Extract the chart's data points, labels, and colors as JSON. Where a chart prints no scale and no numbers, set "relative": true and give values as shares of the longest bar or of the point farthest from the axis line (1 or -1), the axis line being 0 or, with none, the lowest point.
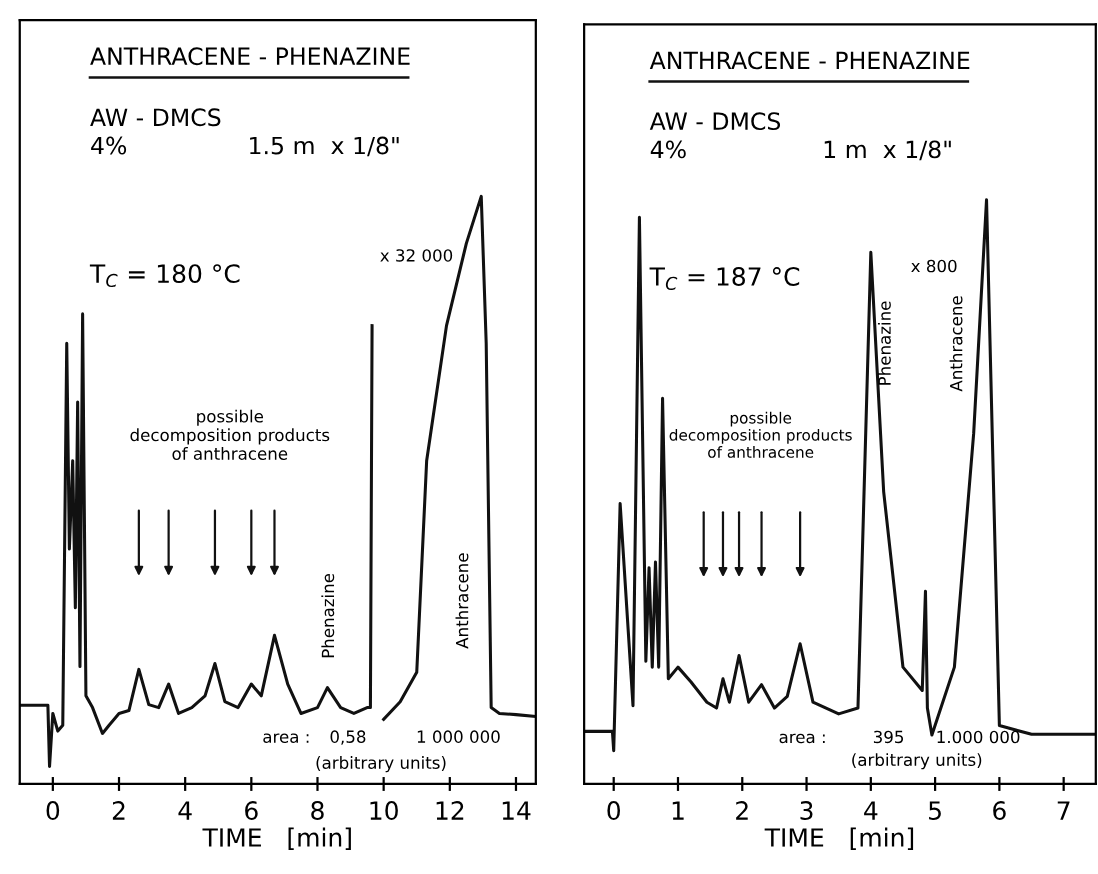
{
  "chart_data": [
    {
      "type": "line",
      "relative": true,
      "title": "ANTHRACENE - PHENAZINE",
      "subtitle": "AW - DMCS\n4%                1.5 m  x 1/8\"",
      "xlabel": "TIME   [min]",
      "x": [
        -1.0,
        -0.15,
        -0.1,
        0.0,
        0.15,
        0.3,
        0.42,
        0.5,
        0.6,
        0.68,
        0.75,
        0.82,
        0.9,
        1.0,
        1.2,
        1.5,
        1.7,
        2.0,
        2.3,
        2.6,
        2.9,
        3.2,
        3.5,
        3.8,
        4.2,
        4.6,
        4.9,
        5.2,
        5.6,
        6.0,
        6.3,
        6.7,
        7.1,
        7.5,
        8.0,
        8.3,
        8.7,
        9.1,
        9.5,
        9.6,
        9.65,
        9.8,
        10.0,
        10.5,
        11.0,
        11.3,
        11.9,
        12.5,
        12.95,
        13.1,
        13.25,
        13.5,
        14.0,
        14.6
      ],
      "series": [
        {
          "color": "#111111",
          "values": [
            0.134,
            0.134,
            0.03,
            0.12,
            0.09,
            0.1,
            0.75,
            0.4,
            0.55,
            0.3,
            0.65,
            0.2,
            0.8,
            0.15,
            0.13,
            0.086,
            0.1,
            0.12,
            0.125,
            0.195,
            0.135,
            0.13,
            0.17,
            0.12,
            0.13,
            0.15,
            0.205,
            0.14,
            0.13,
            0.17,
            0.15,
            0.253,
            0.17,
            0.12,
            0.13,
            0.164,
            0.13,
            0.12,
            0.13,
            0.13,
            0.78,
            null,
            0.11,
            0.14,
            0.19,
            0.55,
            0.78,
            0.92,
            1.0,
            0.75,
            0.13,
            0.12,
            0.118,
            0.115
          ]
        }
      ],
      "xlim": [
        -1.0,
        14.6
      ],
      "xticks": [
        0,
        2,
        4,
        6,
        8,
        10,
        12,
        14
      ],
      "tick_labels": "x",
      "grid": false,
      "legend": false,
      "line_style": "solid",
      "annotations": [
        "T$_{C}$ = 180 °C",
        "possible\ndecomposition products\nof anthracene",
        "x 32 000",
        "Phenazine",
        "Anthracene",
        "area :",
        "0,58",
        "1 000 000",
        "(arbitrary units)"
      ]
    },
    {
      "type": "line",
      "relative": true,
      "title": "ANTHRACENE - PHENAZINE",
      "subtitle": "AW - DMCS\n4%                  1 m  x 1/8\"",
      "xlabel": "TIME   [min]",
      "x": [
        -0.46,
        -0.02,
        0.0,
        0.1,
        0.3,
        0.4,
        0.5,
        0.55,
        0.6,
        0.65,
        0.7,
        0.76,
        0.85,
        1.0,
        1.2,
        1.45,
        1.6,
        1.7,
        1.8,
        1.95,
        2.1,
        2.3,
        2.5,
        2.7,
        2.9,
        3.1,
        3.5,
        3.8,
        4.0,
        4.2,
        4.5,
        4.8,
        4.85,
        4.88,
        4.95,
        5.3,
        5.6,
        5.8,
        6.0,
        6.5,
        7.5
      ],
      "series": [
        {
          "color": "#111111",
          "values": [
            0.09,
            0.09,
            0.057,
            0.48,
            0.134,
            0.97,
            0.21,
            0.37,
            0.2,
            0.38,
            0.2,
            0.66,
            0.18,
            0.2,
            0.175,
            0.14,
            0.13,
            0.18,
            0.14,
            0.22,
            0.14,
            0.17,
            0.13,
            0.15,
            0.24,
            0.14,
            0.12,
            0.13,
            0.91,
            0.5,
            0.2,
            0.16,
            0.33,
            0.13,
            0.084,
            0.2,
            0.6,
            1.0,
            0.1,
            0.085,
            0.085
          ]
        }
      ],
      "xlim": [
        -0.46,
        7.5
      ],
      "xticks": [
        0,
        1,
        2,
        3,
        4,
        5,
        6,
        7
      ],
      "tick_labels": "x",
      "grid": false,
      "legend": false,
      "line_style": "solid",
      "annotations": [
        "T$_{C}$ = 187 °C",
        "possible\ndecomposition products\nof anthracene",
        "x 800",
        "Phenazine",
        "Anthracene",
        "area :",
        "395",
        "1.000 000",
        "(arbitrary units)"
      ]
    }
  ]
}
